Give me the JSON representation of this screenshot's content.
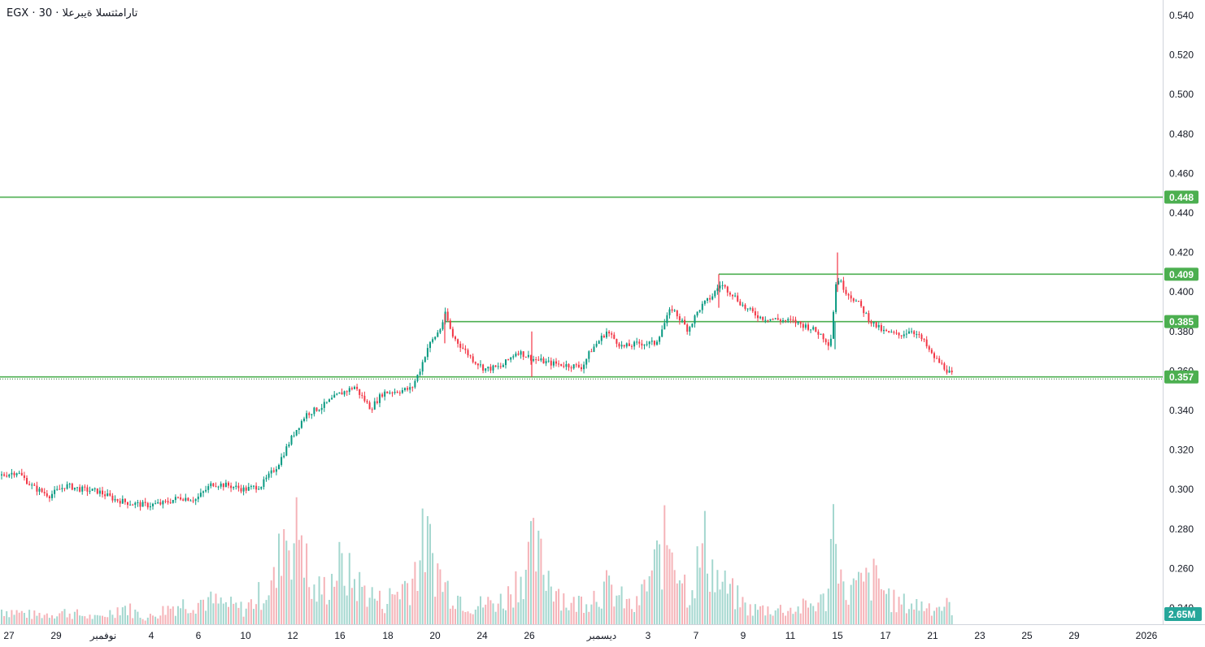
{
  "header": {
    "title": "EGX · 30 · تارامثتسلا ةيبرعلا"
  },
  "chart_data": {
    "type": "candlestick",
    "ylim": [
      0.23,
      0.548
    ],
    "y_ticks": [
      "0.540",
      "0.520",
      "0.500",
      "0.480",
      "0.460",
      "0.440",
      "0.420",
      "0.400",
      "0.380",
      "0.360",
      "0.340",
      "0.320",
      "0.300",
      "0.280",
      "0.260",
      "0.240"
    ],
    "x_ticks": [
      "27",
      "29",
      "نوفمبر",
      "4",
      "6",
      "10",
      "12",
      "16",
      "18",
      "20",
      "24",
      "26",
      "ديسمبر",
      "3",
      "7",
      "9",
      "11",
      "15",
      "17",
      "21",
      "23",
      "25",
      "29",
      "2026"
    ],
    "levels": [
      {
        "label": "0.448",
        "value": 0.448
      },
      {
        "label": "0.409",
        "value": 0.409
      },
      {
        "label": "0.385",
        "value": 0.385
      },
      {
        "label": "0.357",
        "value": 0.357
      }
    ],
    "volume_label": "2.65M",
    "colors": {
      "up": "#089981",
      "down": "#f23645",
      "level": "#4caf50",
      "vol_up": "#a4d7cf",
      "vol_down": "#f5b3b8"
    },
    "price_path": [
      [
        0,
        0.307
      ],
      [
        20,
        0.309
      ],
      [
        40,
        0.301
      ],
      [
        60,
        0.297
      ],
      [
        80,
        0.302
      ],
      [
        100,
        0.3
      ],
      [
        120,
        0.299
      ],
      [
        140,
        0.295
      ],
      [
        160,
        0.293
      ],
      [
        180,
        0.292
      ],
      [
        200,
        0.293
      ],
      [
        220,
        0.296
      ],
      [
        240,
        0.295
      ],
      [
        260,
        0.303
      ],
      [
        280,
        0.302
      ],
      [
        300,
        0.3
      ],
      [
        320,
        0.302
      ],
      [
        340,
        0.312
      ],
      [
        360,
        0.328
      ],
      [
        375,
        0.338
      ],
      [
        395,
        0.342
      ],
      [
        415,
        0.348
      ],
      [
        435,
        0.352
      ],
      [
        455,
        0.341
      ],
      [
        470,
        0.349
      ],
      [
        490,
        0.35
      ],
      [
        505,
        0.351
      ],
      [
        515,
        0.36
      ],
      [
        525,
        0.372
      ],
      [
        540,
        0.381
      ],
      [
        547,
        0.389
      ],
      [
        555,
        0.378
      ],
      [
        565,
        0.373
      ],
      [
        580,
        0.366
      ],
      [
        595,
        0.361
      ],
      [
        615,
        0.362
      ],
      [
        635,
        0.37
      ],
      [
        655,
        0.366
      ],
      [
        675,
        0.364
      ],
      [
        695,
        0.363
      ],
      [
        715,
        0.362
      ],
      [
        725,
        0.37
      ],
      [
        745,
        0.38
      ],
      [
        765,
        0.372
      ],
      [
        785,
        0.374
      ],
      [
        805,
        0.374
      ],
      [
        825,
        0.392
      ],
      [
        845,
        0.381
      ],
      [
        860,
        0.392
      ],
      [
        875,
        0.398
      ],
      [
        885,
        0.404
      ],
      [
        900,
        0.399
      ],
      [
        915,
        0.392
      ],
      [
        935,
        0.387
      ],
      [
        955,
        0.386
      ],
      [
        975,
        0.385
      ],
      [
        995,
        0.382
      ],
      [
        1010,
        0.378
      ],
      [
        1020,
        0.373
      ],
      [
        1028,
        0.408
      ],
      [
        1040,
        0.4
      ],
      [
        1055,
        0.394
      ],
      [
        1070,
        0.385
      ],
      [
        1085,
        0.38
      ],
      [
        1105,
        0.378
      ],
      [
        1120,
        0.381
      ],
      [
        1135,
        0.375
      ],
      [
        1145,
        0.368
      ],
      [
        1160,
        0.362
      ],
      [
        1172,
        0.357
      ]
    ],
    "volume_path": [
      [
        0,
        0.05
      ],
      [
        40,
        0.03
      ],
      [
        80,
        0.04
      ],
      [
        120,
        0.02
      ],
      [
        150,
        0.06
      ],
      [
        180,
        0.02
      ],
      [
        210,
        0.06
      ],
      [
        250,
        0.08
      ],
      [
        300,
        0.05
      ],
      [
        340,
        0.15
      ],
      [
        346,
        0.33
      ],
      [
        356,
        0.3
      ],
      [
        362,
        0.28
      ],
      [
        370,
        0.34
      ],
      [
        380,
        0.1
      ],
      [
        400,
        0.12
      ],
      [
        415,
        0.19
      ],
      [
        440,
        0.13
      ],
      [
        470,
        0.07
      ],
      [
        505,
        0.15
      ],
      [
        522,
        0.28
      ],
      [
        545,
        0.13
      ],
      [
        580,
        0.06
      ],
      [
        620,
        0.08
      ],
      [
        655,
        0.24
      ],
      [
        700,
        0.06
      ],
      [
        745,
        0.12
      ],
      [
        780,
        0.05
      ],
      [
        824,
        0.3
      ],
      [
        845,
        0.1
      ],
      [
        866,
        0.26
      ],
      [
        880,
        0.15
      ],
      [
        920,
        0.05
      ],
      [
        980,
        0.05
      ],
      [
        1015,
        0.08
      ],
      [
        1027,
        0.42
      ],
      [
        1035,
        0.1
      ],
      [
        1075,
        0.15
      ],
      [
        1100,
        0.07
      ],
      [
        1150,
        0.06
      ],
      [
        1172,
        0.06
      ]
    ]
  }
}
